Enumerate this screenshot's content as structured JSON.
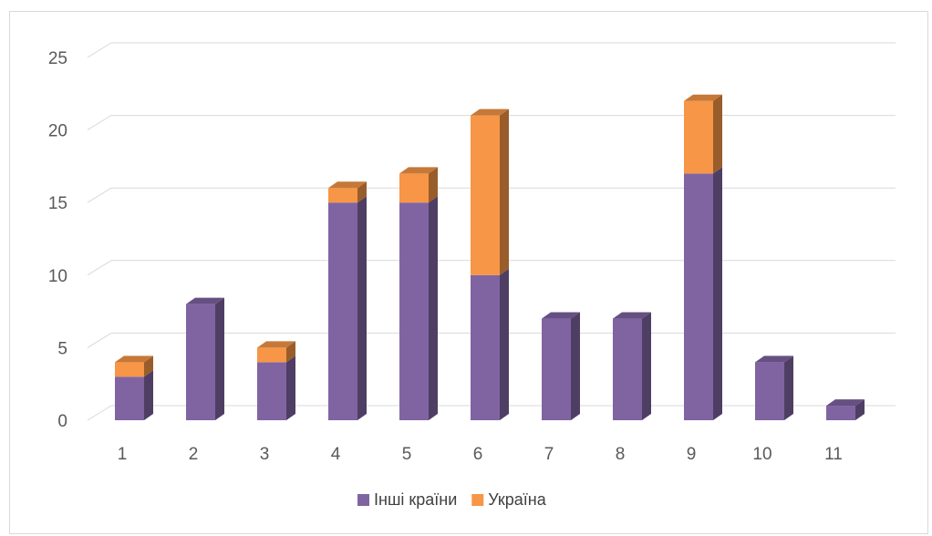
{
  "chart_data": {
    "type": "bar",
    "stacked": true,
    "three_d": true,
    "categories": [
      "1",
      "2",
      "3",
      "4",
      "5",
      "6",
      "7",
      "8",
      "9",
      "10",
      "11"
    ],
    "series": [
      {
        "name": "Інші країни",
        "color": "#8064a2",
        "values": [
          3,
          8,
          4,
          15,
          15,
          10,
          7,
          7,
          17,
          4,
          1
        ]
      },
      {
        "name": "Україна",
        "color": "#f79646",
        "values": [
          1,
          0,
          1,
          1,
          2,
          11,
          0,
          0,
          5,
          0,
          0
        ]
      }
    ],
    "ylim": [
      0,
      25
    ],
    "yticks": [
      "0",
      "5",
      "10",
      "15",
      "20",
      "25"
    ],
    "grid": true,
    "legend": "bottom"
  }
}
